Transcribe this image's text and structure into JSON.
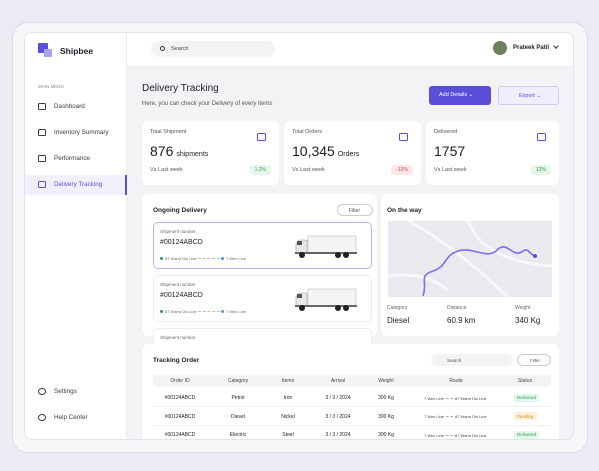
{
  "sidebar": {
    "brand": "Shipbee",
    "section": "MAIN MENU",
    "menu": [
      "Dashboard",
      "Inventory Summary",
      "Performance",
      "Delivery Tracking"
    ],
    "bottom": [
      "Settings",
      "Help Center"
    ]
  },
  "header": {
    "search": "Search",
    "user": "Prateek Patil"
  },
  "page": {
    "title": "Delivery Tracking",
    "subtitle": "Here, you can check your Delivery of every items",
    "add_button": "Add Details",
    "export_button": "Export"
  },
  "stats": [
    {
      "label": "Total Shipment",
      "value": "876",
      "unit": "shipments",
      "compare": "Vs Last week",
      "change": "1.2%"
    },
    {
      "label": "Total Orders",
      "value": "10,345",
      "unit": "Orders",
      "compare": "Vs Last week",
      "change": "-12%"
    },
    {
      "label": "Delivered",
      "value": "1757",
      "compare": "Vs Last week",
      "change": "12%"
    }
  ],
  "ongoing": {
    "title": "Ongoing Delivery",
    "filter": "Filter",
    "items": [
      {
        "label": "Shipment number",
        "number": "#00124ABCD",
        "from": "87 Warm Dis Line",
        "to": "7 Wex Line"
      },
      {
        "label": "Shipment number",
        "number": "#00124ABCD",
        "from": "87 Warm Dis Line",
        "to": "7 Wex Line"
      },
      {
        "label": "Shipment number"
      }
    ]
  },
  "on_the_way": {
    "title": "On the way",
    "details": [
      {
        "label": "Category",
        "value": "Diesel"
      },
      {
        "label": "Distance",
        "value": "60.9 km"
      },
      {
        "label": "Weight",
        "value": "340 Kg"
      }
    ]
  },
  "tracking": {
    "title": "Tracking Order",
    "search": "Search",
    "filter": "Filter",
    "columns": [
      "Order ID",
      "Category",
      "Items",
      "Arrival",
      "Weight",
      "Route",
      "Status"
    ],
    "rows": [
      [
        "#00124ABCD",
        "Petrol",
        "Iron",
        "3 / 3 / 2024",
        "300 Kg",
        "7 Wex Line",
        "87 Warm Dis Line",
        "Delivered"
      ],
      [
        "#00124ABCD",
        "Diesel",
        "Nickel",
        "3 / 3 / 2024",
        "300 Kg",
        "7 Wex Line",
        "87 Warm Dis Line",
        "Pending"
      ],
      [
        "#00124ABCD",
        "Electric",
        "Steel",
        "3 / 3 / 2024",
        "300 Kg",
        "7 Wex Line",
        "87 Warm Dis Line",
        "Delivered"
      ]
    ]
  }
}
